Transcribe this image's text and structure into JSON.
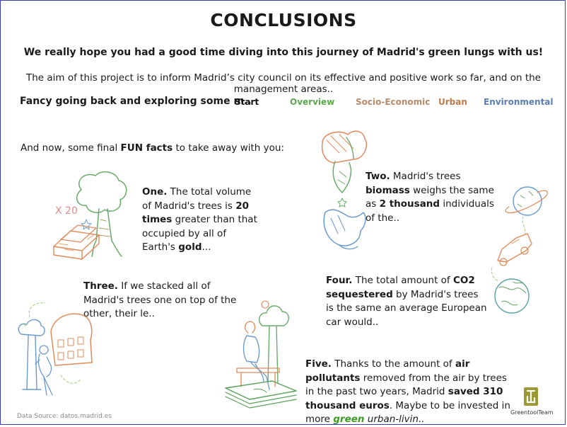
{
  "title": "CONCLUSIONS",
  "subtitle": "We really hope you had a good time diving into this journey of Madrid's green lungs with us!",
  "aim": "The aim of this project is to inform Madrid’s city council on its effective and positive work so far, and on the management areas..",
  "explore": {
    "prompt": "Fancy going back and exploring some m..",
    "links": [
      {
        "label": "Start",
        "color": "#111111"
      },
      {
        "label": "Overview",
        "color": "#5aa94a"
      },
      {
        "label": "Socio-Economic",
        "color": "#b98a6a"
      },
      {
        "label": "Urban",
        "color": "#c07a4a"
      },
      {
        "label": "Environmental",
        "color": "#5a7fb0"
      }
    ]
  },
  "intro": {
    "before": "And now, some final ",
    "bold": "FUN facts",
    "after": " to take away with you:"
  },
  "facts": {
    "one": {
      "lead": "One.",
      "t1": " The total volume of Madrid's trees is ",
      "b1": "20 times",
      "t2": " greater than that occupied by all of Earth's ",
      "b2": "gold",
      "t3": "..."
    },
    "two": {
      "lead": "Two.",
      "t1": " Madrid's trees ",
      "b1": "biomass",
      "t2": " weighs the same as ",
      "b2": "2 thousand",
      "t3": " individuals of the.."
    },
    "three": {
      "lead": "Three.",
      "t1": " If we stacked all of Madrid's trees one on top of the other, their le.."
    },
    "four": {
      "lead": "Four.",
      "t1": " The total amount of ",
      "b1": "CO2 sequestered",
      "t2": " by Madrid's trees is the same an average European car would.."
    },
    "five": {
      "lead": "Five.",
      "t1": " Thanks to the amount of ",
      "b1": "air pollutants",
      "t2": " removed from the air by trees in the past two years, Madrid ",
      "b2": "saved 310 thousand euros",
      "t3": ". Maybe to be invested in more ",
      "green": "green",
      "t4": " urban-livin.."
    }
  },
  "illustration_text": {
    "x20": "X 20"
  },
  "source": "Data Source: datos.madrid.es",
  "logo": {
    "letter": "G",
    "label": "GreentoolTeam"
  },
  "colors": {
    "orange": "#e08a5a",
    "green": "#6aaa6a",
    "blue": "#6a9acb",
    "teal": "#5aa0a0",
    "olive": "#9a9a30"
  }
}
